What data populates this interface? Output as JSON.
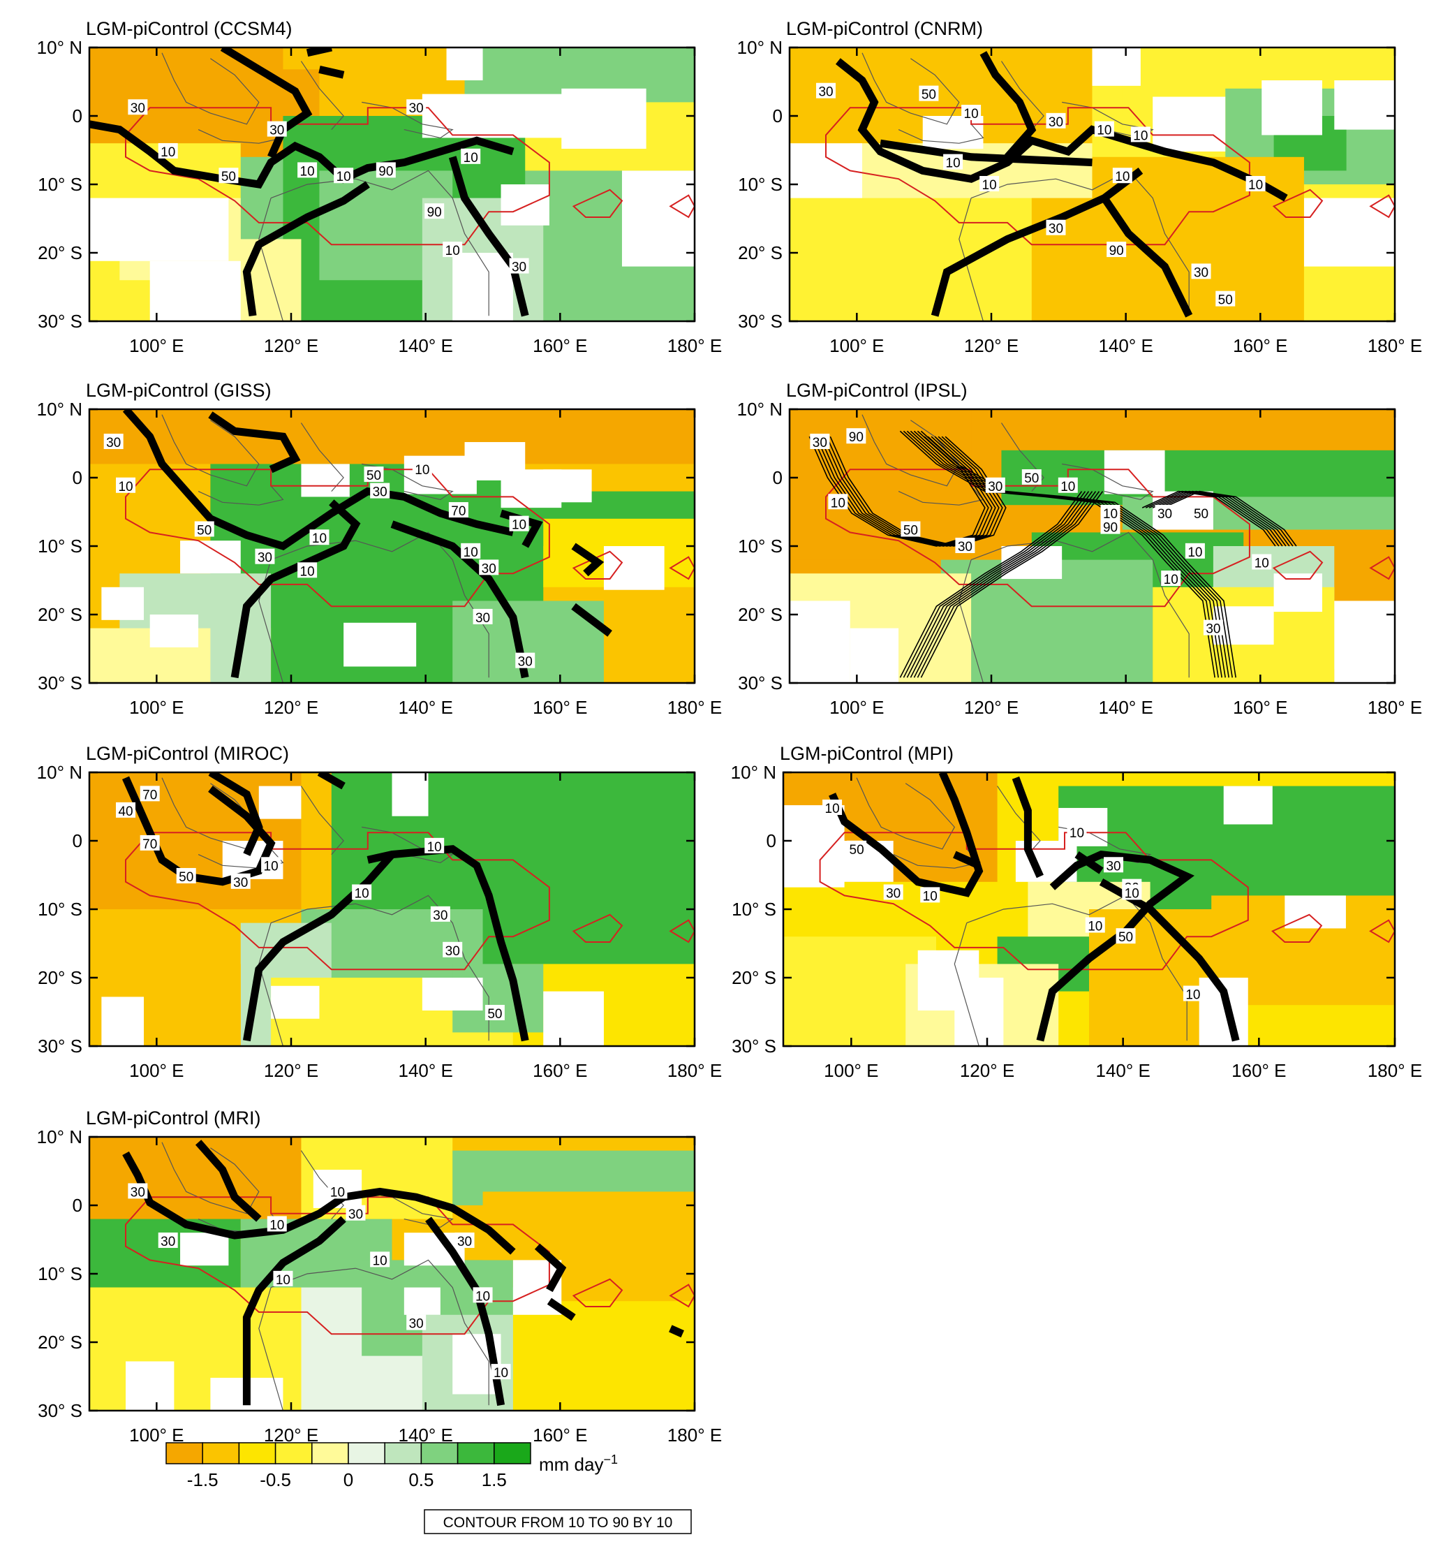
{
  "panels": [
    {
      "title": "LGM-piControl (CCSM4)"
    },
    {
      "title": "LGM-piControl (CNRM)"
    },
    {
      "title": "LGM-piControl (GISS)"
    },
    {
      "title": "LGM-piControl (IPSL)"
    },
    {
      "title": "LGM-piControl (MIROC)"
    },
    {
      "title": "LGM-piControl (MPI)"
    },
    {
      "title": "LGM-piControl (MRI)"
    }
  ],
  "axes": {
    "lat_ticks": [
      "10° N",
      "0",
      "10° S",
      "20° S",
      "30° S"
    ],
    "lon_ticks": [
      "100° E",
      "120° E",
      "140° E",
      "160° E",
      "180° E"
    ],
    "lat_range": [
      -30,
      10
    ],
    "lon_range": [
      90,
      180
    ]
  },
  "colorbar": {
    "tick_labels": [
      "-1.5",
      "-0.5",
      "0",
      "0.5",
      "1.5"
    ],
    "units_label": "mm day",
    "units_superscript": "−1",
    "colors": [
      "#f5a700",
      "#fbc400",
      "#fde500",
      "#fff233",
      "#fffa99",
      "#e8f5e4",
      "#bfe6bd",
      "#7fd27f",
      "#3cb83c",
      "#1aa81a"
    ]
  },
  "contour_note": "CONTOUR FROM 10 TO 90 BY 10",
  "contour_labels": [
    [
      "30",
      "10",
      "50",
      "30",
      "10",
      "10",
      "90",
      "30",
      "10",
      "90",
      "10",
      "30"
    ],
    [
      "30",
      "50",
      "10",
      "10",
      "10",
      "30",
      "10",
      "10",
      "10",
      "30",
      "90",
      "30",
      "50",
      "10"
    ],
    [
      "30",
      "10",
      "50",
      "30",
      "10",
      "30",
      "50",
      "10",
      "70",
      "10",
      "10",
      "30",
      "10",
      "30",
      "30"
    ],
    [
      "30",
      "90",
      "10",
      "50",
      "30",
      "30",
      "50",
      "10",
      "90",
      "10",
      "30",
      "50",
      "10",
      "10",
      "10",
      "30"
    ],
    [
      "70",
      "40",
      "70",
      "50",
      "30",
      "10",
      "10",
      "10",
      "30",
      "30",
      "50"
    ],
    [
      "10",
      "50",
      "30",
      "10",
      "10",
      "30",
      "10",
      "30",
      "10",
      "50",
      "10"
    ],
    [
      "30",
      "30",
      "10",
      "10",
      "30",
      "10",
      "10",
      "30",
      "10",
      "30",
      "10"
    ]
  ],
  "colors": {
    "contour": "#000000",
    "region_outline": "#d62020",
    "coast": "#555555"
  }
}
